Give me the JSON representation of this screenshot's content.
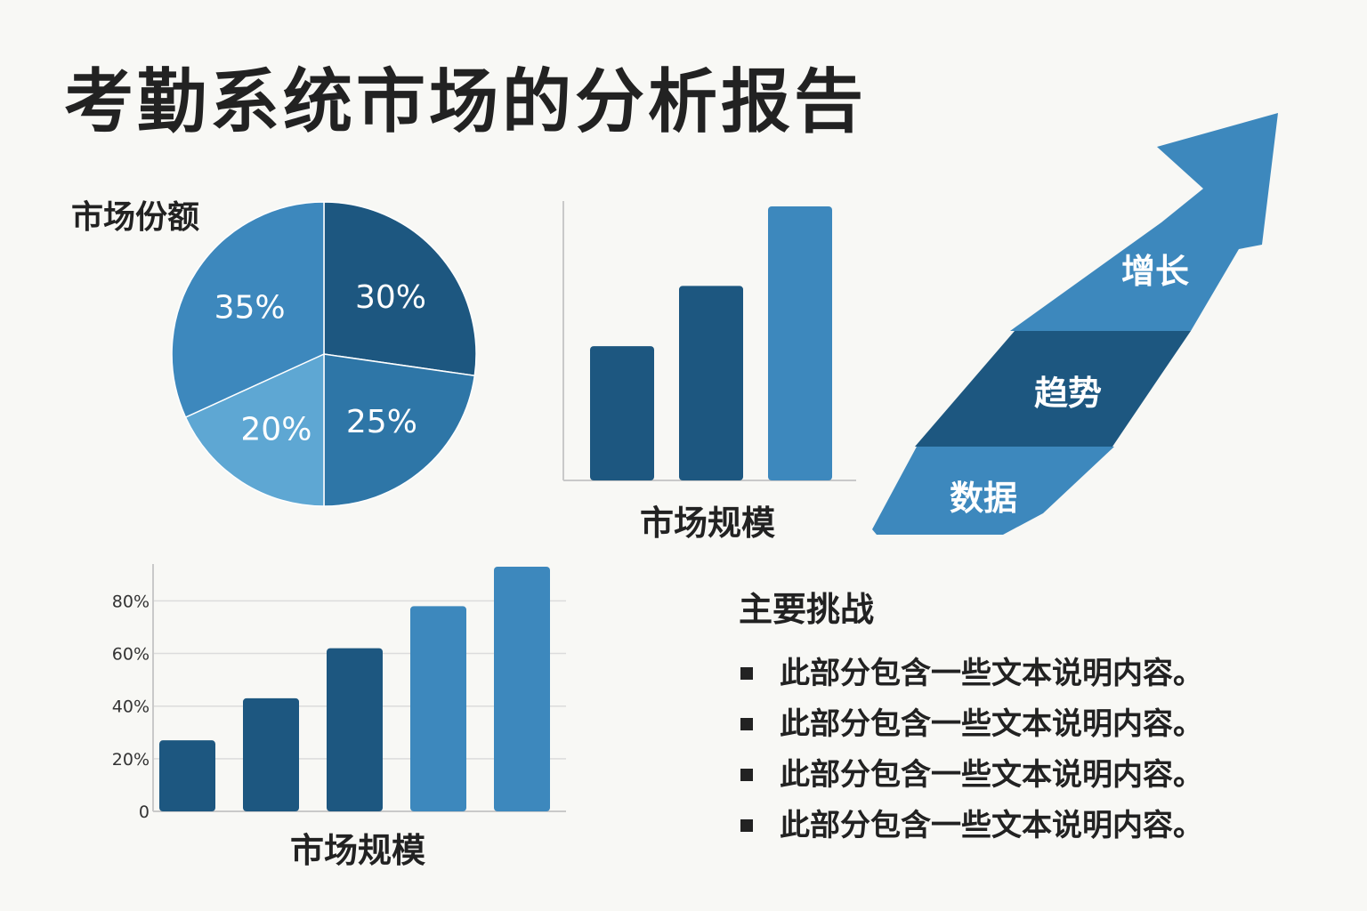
{
  "title": "考勤系统市场的分析报告",
  "colors": {
    "dark": "#1d5780",
    "mid": "#2e76a7",
    "blue": "#3d88bd",
    "light": "#5ea7d3",
    "background": "#f8f8f5"
  },
  "chart_data": [
    {
      "type": "pie",
      "title": "市场份额",
      "slices": [
        {
          "label": "30%",
          "value": 30,
          "color": "#1d5780"
        },
        {
          "label": "25%",
          "value": 25,
          "color": "#2e76a7"
        },
        {
          "label": "20%",
          "value": 20,
          "color": "#5ea7d3"
        },
        {
          "label": "35%",
          "value": 35,
          "color": "#3d88bd"
        }
      ]
    },
    {
      "type": "bar",
      "xlabel": "市场规模",
      "categories": [
        "",
        "",
        ""
      ],
      "values": [
        49,
        71,
        100
      ],
      "colors": [
        "#1d5780",
        "#1d5780",
        "#3d88bd"
      ]
    },
    {
      "type": "bar",
      "xlabel": "市场规模",
      "categories": [
        "",
        "",
        "",
        "",
        ""
      ],
      "values": [
        27,
        43,
        62,
        78,
        93
      ],
      "colors": [
        "#1d5780",
        "#1d5780",
        "#1d5780",
        "#3d88bd",
        "#3d88bd"
      ],
      "ylim": [
        0,
        94
      ],
      "yticks": [
        "0",
        "20%",
        "40%",
        "60%",
        "80%"
      ],
      "ytick_values": [
        0,
        20,
        40,
        60,
        80
      ],
      "grid": true
    }
  ],
  "arrow": {
    "labels": [
      "增长",
      "趋势",
      "数据"
    ]
  },
  "challenges": {
    "title": "主要挑战",
    "items": [
      "此部分包含一些文本说明内容。",
      "此部分包含一些文本说明内容。",
      "此部分包含一些文本说明内容。",
      "此部分包含一些文本说明内容。"
    ]
  }
}
